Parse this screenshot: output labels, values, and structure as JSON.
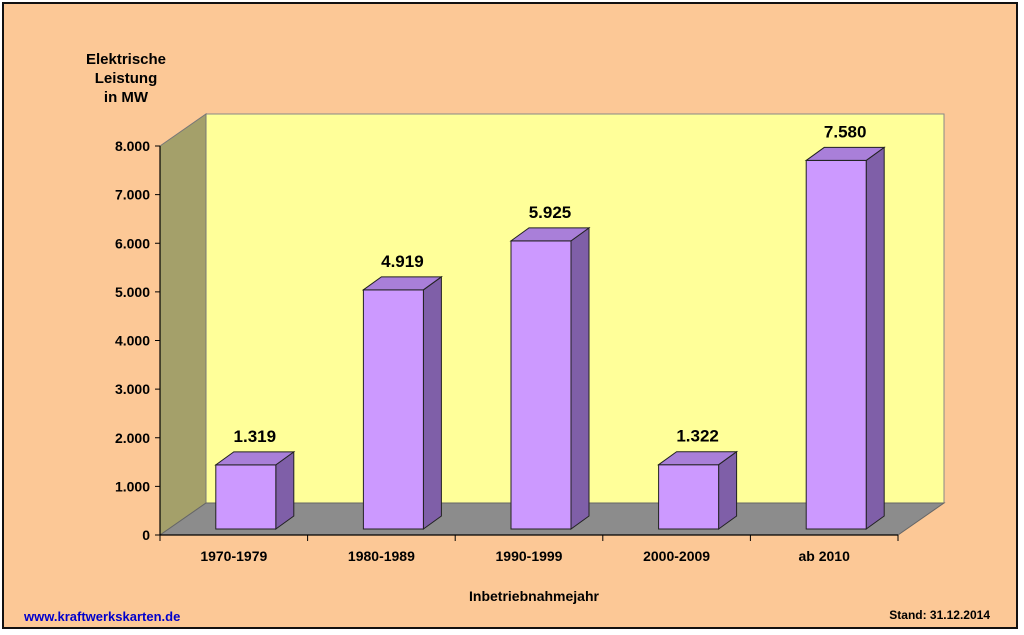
{
  "chart_data": {
    "type": "bar",
    "categories": [
      "1970-1979",
      "1980-1989",
      "1990-1999",
      "2000-2009",
      "ab 2010"
    ],
    "values": [
      1319,
      4919,
      5925,
      1322,
      7580
    ],
    "value_labels": [
      "1.319",
      "4.919",
      "5.925",
      "1.322",
      "7.580"
    ],
    "ylabel_lines": [
      "Elektrische",
      "Leistung",
      "in MW"
    ],
    "xlabel": "Inbetriebnahmejahr",
    "ylim": [
      0,
      8000
    ],
    "yticks": [
      0,
      1000,
      2000,
      3000,
      4000,
      5000,
      6000,
      7000,
      8000
    ],
    "ytick_labels": [
      "0",
      "1.000",
      "2.000",
      "3.000",
      "4.000",
      "5.000",
      "6.000",
      "7.000",
      "8.000"
    ],
    "grid": false,
    "style": "3d-column"
  },
  "footer": {
    "source": "www.kraftwerkskarten.de",
    "stand": "Stand: 31.12.2014"
  },
  "colors": {
    "background": "#fcc896",
    "back_wall": "#ffff99",
    "side_wall": "#a4a06a",
    "floor": "#8c8c8c",
    "bar_front": "#cc99ff",
    "bar_side": "#7f5fa8",
    "bar_top": "#a97fd9"
  }
}
